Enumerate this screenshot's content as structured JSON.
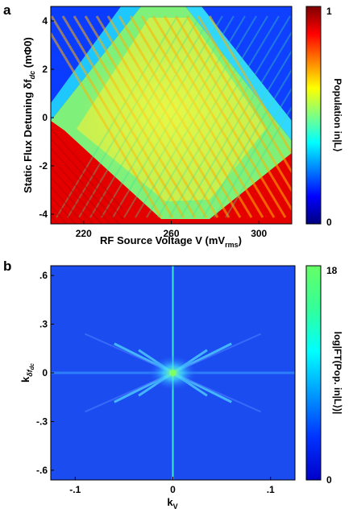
{
  "chart_data": [
    {
      "panel": "a",
      "type": "heatmap",
      "title": "",
      "xlabel": "RF Source Voltage V (mV",
      "xlabel_sub": "rms",
      "xlabel_end": ")",
      "ylabel": "Static Flux Detuning δf",
      "ylabel_sub": "dc",
      "ylabel_end": " (mΦ0)",
      "xlim": [
        205,
        315
      ],
      "ylim": [
        -4.4,
        4.6
      ],
      "xticks": [
        220,
        260,
        300
      ],
      "xtick_labels": [
        "220",
        "260",
        "300"
      ],
      "yticks": [
        4,
        2,
        0,
        -2,
        -4
      ],
      "ytick_labels": [
        "4",
        "2",
        "0",
        "-2",
        "-4"
      ],
      "colorbar": {
        "label": "Population in|L⟩",
        "min": 0,
        "max": 1,
        "min_label": "0",
        "max_label": "1",
        "colors": [
          "#00007f",
          "#0000ff",
          "#0080ff",
          "#00ffff",
          "#80ff80",
          "#ffff00",
          "#ff8000",
          "#ff0000",
          "#7f0000"
        ]
      },
      "grid": false
    },
    {
      "panel": "b",
      "type": "heatmap",
      "title": "",
      "xlabel": "k",
      "xlabel_sub": "V",
      "ylabel": "k",
      "ylabel_sub": "δf",
      "ylabel_subsub": "dc",
      "xlim": [
        -0.125,
        0.125
      ],
      "ylim": [
        -0.66,
        0.66
      ],
      "xticks": [
        -0.1,
        0,
        0.1
      ],
      "xtick_labels": [
        "-.1",
        "0",
        ".1"
      ],
      "yticks": [
        0.6,
        0.3,
        0,
        -0.3,
        -0.6
      ],
      "ytick_labels": [
        ".6",
        ".3",
        "0",
        "-.3",
        "-.6"
      ],
      "colorbar": {
        "label": "log|FT(Pop. in|L⟩)|",
        "min": 0,
        "max": 18,
        "min_label": "0",
        "max_label": "18",
        "colors": [
          "#0000c8",
          "#0033ff",
          "#0099ff",
          "#00ffff",
          "#33ff99",
          "#66ff66"
        ]
      },
      "grid": false
    }
  ],
  "panels": {
    "a_letter": "a",
    "b_letter": "b"
  }
}
